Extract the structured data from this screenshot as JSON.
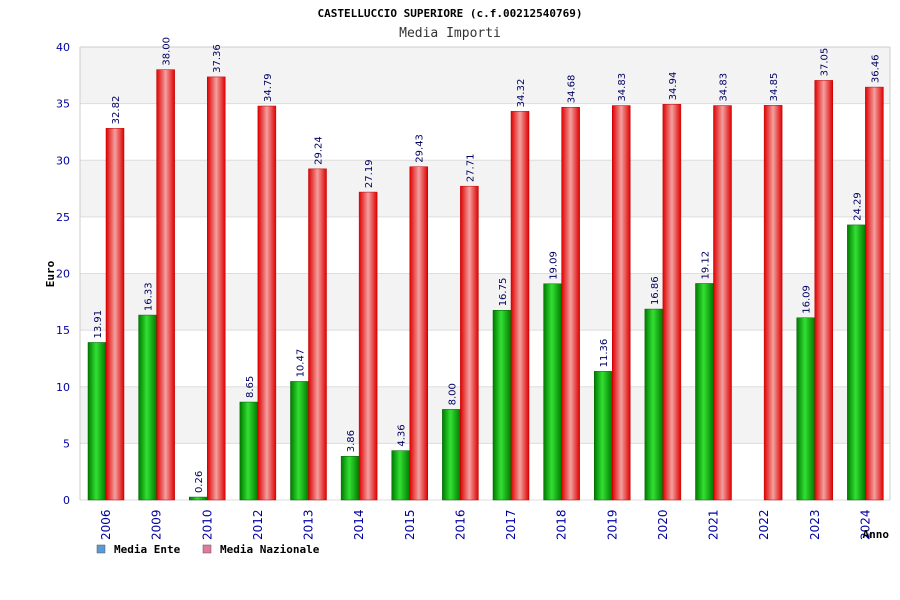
{
  "chart_data": {
    "type": "bar",
    "title": "CASTELLUCCIO SUPERIORE (c.f.00212540769)",
    "subtitle": "Media Importi",
    "ylabel": "Euro",
    "xlabel": "Anno",
    "ylim": [
      0,
      40
    ],
    "yticks": [
      0,
      5,
      10,
      15,
      20,
      25,
      30,
      35,
      40
    ],
    "grid": true,
    "legend_position": "bottom-left",
    "categories": [
      "2006",
      "2009",
      "2010",
      "2012",
      "2013",
      "2014",
      "2015",
      "2016",
      "2017",
      "2018",
      "2019",
      "2020",
      "2021",
      "2022",
      "2023",
      "2024"
    ],
    "series": [
      {
        "name": "Media Ente",
        "color": "#00b000",
        "legend_color": "#5b9bd5",
        "values": [
          13.91,
          16.33,
          0.26,
          8.65,
          10.47,
          3.86,
          4.36,
          8.0,
          16.75,
          19.09,
          11.36,
          16.86,
          19.12,
          null,
          16.09,
          24.29
        ],
        "labels": [
          "13.91",
          "16.33",
          "0.26",
          "8.65",
          "10.47",
          "3.86",
          "4.36",
          "8.00",
          "16.75",
          "19.09",
          "11.36",
          "16.86",
          "19.12",
          "",
          "16.09",
          "24.29"
        ]
      },
      {
        "name": "Media Nazionale",
        "color": "#e01010",
        "legend_color": "#e07aa0",
        "values": [
          32.82,
          38.0,
          37.36,
          34.79,
          29.24,
          27.19,
          29.43,
          27.71,
          34.32,
          34.68,
          34.83,
          34.94,
          34.83,
          34.85,
          37.05,
          36.46
        ],
        "labels": [
          "32.82",
          "38.00",
          "37.36",
          "34.79",
          "29.24",
          "27.19",
          "29.43",
          "27.71",
          "34.32",
          "34.68",
          "34.83",
          "34.94",
          "34.83",
          "34.85",
          "37.05",
          "36.46"
        ]
      }
    ]
  }
}
